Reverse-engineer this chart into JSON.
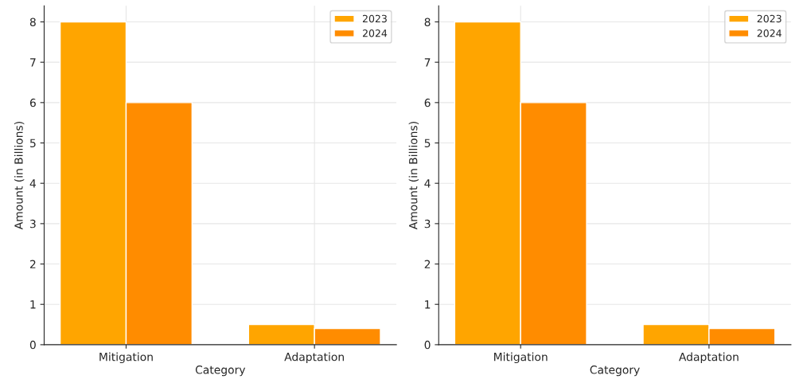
{
  "chart_data": [
    {
      "type": "bar",
      "xlabel": "Category",
      "ylabel": "Amount (in Billions)",
      "categories": [
        "Mitigation",
        "Adaptation"
      ],
      "series": [
        {
          "name": "2023",
          "color": "#ffa500",
          "values": [
            8,
            0.5
          ]
        },
        {
          "name": "2024",
          "color": "#ff8c00",
          "values": [
            6,
            0.4
          ]
        }
      ],
      "ylim": [
        0,
        8.4
      ],
      "yticks": [
        0,
        1,
        2,
        3,
        4,
        5,
        6,
        7,
        8
      ],
      "grid": true,
      "legend": "top right"
    },
    {
      "type": "bar",
      "xlabel": "Category",
      "ylabel": "Amount (in Billions)",
      "categories": [
        "Mitigation",
        "Adaptation"
      ],
      "series": [
        {
          "name": "2023",
          "color": "#ffa500",
          "values": [
            8,
            0.5
          ]
        },
        {
          "name": "2024",
          "color": "#ff8c00",
          "values": [
            6,
            0.4
          ]
        }
      ],
      "ylim": [
        0,
        8.4
      ],
      "yticks": [
        0,
        1,
        2,
        3,
        4,
        5,
        6,
        7,
        8
      ],
      "grid": true,
      "legend": "top right"
    }
  ]
}
